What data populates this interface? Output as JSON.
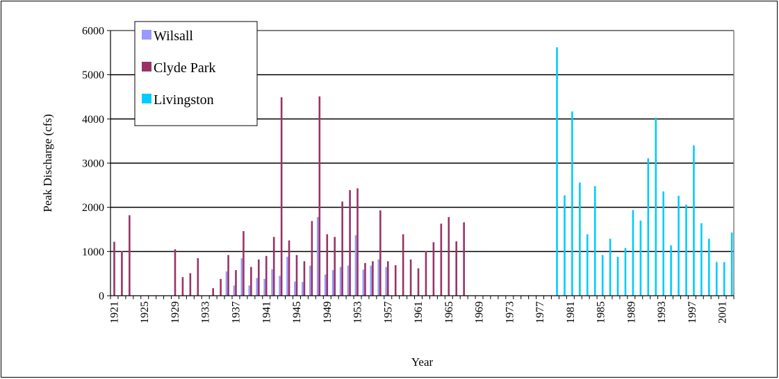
{
  "chart_data": {
    "type": "bar",
    "xlabel": "Year",
    "ylabel": "Peak Discharge (cfs)",
    "ylim": [
      0,
      6000
    ],
    "yticks": [
      0,
      1000,
      2000,
      3000,
      4000,
      5000,
      6000
    ],
    "xlim": [
      1921,
      2002
    ],
    "xticks": [
      1921,
      1925,
      1929,
      1933,
      1937,
      1941,
      1945,
      1949,
      1953,
      1957,
      1961,
      1965,
      1969,
      1973,
      1977,
      1981,
      1985,
      1989,
      1993,
      1997,
      2001
    ],
    "grid": true,
    "legend_position": "top-left",
    "series": [
      {
        "name": "Wilsall",
        "color": "#9999ff",
        "x": [
          1936,
          1937,
          1938,
          1939,
          1940,
          1941,
          1942,
          1943,
          1944,
          1945,
          1946,
          1947,
          1948,
          1949,
          1950,
          1951,
          1952,
          1953,
          1954,
          1955,
          1956,
          1957
        ],
        "values": [
          550,
          230,
          850,
          230,
          400,
          380,
          600,
          450,
          880,
          320,
          310,
          680,
          1780,
          480,
          580,
          650,
          680,
          1370,
          590,
          680,
          820,
          650
        ]
      },
      {
        "name": "Clyde Park",
        "color": "#993366",
        "x": [
          1921,
          1922,
          1923,
          1929,
          1930,
          1931,
          1932,
          1934,
          1935,
          1936,
          1937,
          1938,
          1939,
          1940,
          1941,
          1942,
          1943,
          1944,
          1945,
          1946,
          1947,
          1948,
          1949,
          1950,
          1951,
          1952,
          1953,
          1954,
          1955,
          1956,
          1957,
          1958,
          1959,
          1960,
          1961,
          1962,
          1963,
          1964,
          1965,
          1966,
          1967
        ],
        "values": [
          1220,
          1010,
          1820,
          1050,
          420,
          510,
          850,
          170,
          380,
          920,
          580,
          1460,
          650,
          820,
          900,
          1330,
          4490,
          1250,
          920,
          780,
          1690,
          4510,
          1390,
          1330,
          2130,
          2390,
          2430,
          740,
          780,
          1930,
          780,
          690,
          1390,
          820,
          620,
          1010,
          1210,
          1630,
          1780,
          1230,
          1660
        ]
      },
      {
        "name": "Livingston",
        "color": "#00ccff",
        "x": [
          1979,
          1980,
          1981,
          1982,
          1983,
          1984,
          1985,
          1986,
          1987,
          1988,
          1989,
          1990,
          1991,
          1992,
          1993,
          1994,
          1995,
          1996,
          1997,
          1998,
          1999,
          2000,
          2001,
          2002
        ],
        "values": [
          5620,
          2270,
          4170,
          2560,
          1390,
          2480,
          920,
          1290,
          880,
          1080,
          1940,
          1700,
          3110,
          4030,
          2360,
          1140,
          2260,
          2060,
          3400,
          1640,
          1290,
          760,
          760,
          1430
        ]
      }
    ]
  }
}
